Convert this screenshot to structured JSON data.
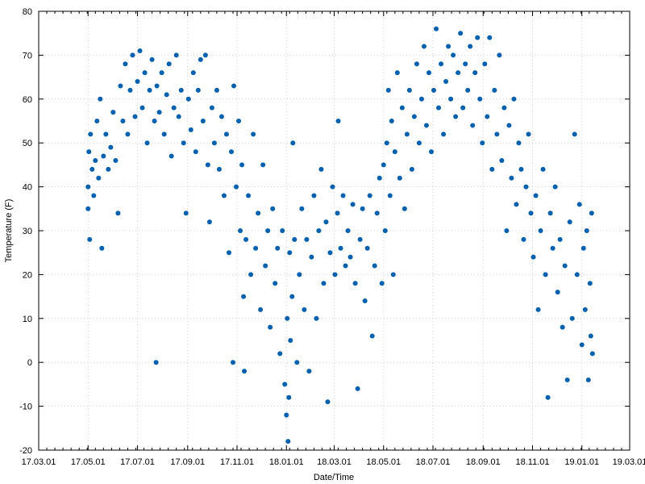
{
  "chart_data": {
    "type": "scatter",
    "title": "",
    "xlabel": "Date/Time",
    "ylabel": "Temperature (F)",
    "x_axis_type": "date",
    "xlim": [
      "2017-03-01",
      "2019-03-01"
    ],
    "ylim": [
      -20,
      80
    ],
    "grid": true,
    "legend": "none",
    "marker_color": "#0060ad",
    "x_ticks": [
      {
        "date": "2017-03-01",
        "label": "17.03.01"
      },
      {
        "date": "2017-05-01",
        "label": "17.05.01"
      },
      {
        "date": "2017-07-01",
        "label": "17.07.01"
      },
      {
        "date": "2017-09-01",
        "label": "17.09.01"
      },
      {
        "date": "2017-11-01",
        "label": "17.11.01"
      },
      {
        "date": "2018-01-01",
        "label": "18.01.01"
      },
      {
        "date": "2018-03-01",
        "label": "18.03.01"
      },
      {
        "date": "2018-05-01",
        "label": "18.05.01"
      },
      {
        "date": "2018-07-01",
        "label": "18.07.01"
      },
      {
        "date": "2018-09-01",
        "label": "18.09.01"
      },
      {
        "date": "2018-11-01",
        "label": "18.11.01"
      },
      {
        "date": "2019-01-01",
        "label": "19.01.01"
      },
      {
        "date": "2019-03-01",
        "label": "19.03.01"
      }
    ],
    "y_ticks": [
      -20,
      -10,
      0,
      10,
      20,
      30,
      40,
      50,
      60,
      70,
      80
    ],
    "series": [
      {
        "points": [
          {
            "x": "2017-05-01",
            "y": 40
          },
          {
            "x": "2017-05-01",
            "y": 35
          },
          {
            "x": "2017-05-02",
            "y": 48
          },
          {
            "x": "2017-05-03",
            "y": 28
          },
          {
            "x": "2017-05-04",
            "y": 52
          },
          {
            "x": "2017-05-06",
            "y": 44
          },
          {
            "x": "2017-05-08",
            "y": 38
          },
          {
            "x": "2017-05-10",
            "y": 46
          },
          {
            "x": "2017-05-12",
            "y": 55
          },
          {
            "x": "2017-05-14",
            "y": 42
          },
          {
            "x": "2017-05-16",
            "y": 60
          },
          {
            "x": "2017-05-18",
            "y": 26
          },
          {
            "x": "2017-05-20",
            "y": 47
          },
          {
            "x": "2017-05-23",
            "y": 52
          },
          {
            "x": "2017-05-26",
            "y": 44
          },
          {
            "x": "2017-05-29",
            "y": 49
          },
          {
            "x": "2017-06-01",
            "y": 57
          },
          {
            "x": "2017-06-04",
            "y": 46
          },
          {
            "x": "2017-06-07",
            "y": 34
          },
          {
            "x": "2017-06-10",
            "y": 63
          },
          {
            "x": "2017-06-13",
            "y": 55
          },
          {
            "x": "2017-06-16",
            "y": 68
          },
          {
            "x": "2017-06-19",
            "y": 52
          },
          {
            "x": "2017-06-22",
            "y": 62
          },
          {
            "x": "2017-06-25",
            "y": 70
          },
          {
            "x": "2017-06-28",
            "y": 56
          },
          {
            "x": "2017-07-01",
            "y": 64
          },
          {
            "x": "2017-07-04",
            "y": 71
          },
          {
            "x": "2017-07-07",
            "y": 58
          },
          {
            "x": "2017-07-10",
            "y": 66
          },
          {
            "x": "2017-07-13",
            "y": 50
          },
          {
            "x": "2017-07-16",
            "y": 62
          },
          {
            "x": "2017-07-19",
            "y": 69
          },
          {
            "x": "2017-07-22",
            "y": 55
          },
          {
            "x": "2017-07-24",
            "y": 0
          },
          {
            "x": "2017-07-25",
            "y": 63
          },
          {
            "x": "2017-07-28",
            "y": 57
          },
          {
            "x": "2017-07-31",
            "y": 66
          },
          {
            "x": "2017-08-03",
            "y": 52
          },
          {
            "x": "2017-08-06",
            "y": 61
          },
          {
            "x": "2017-08-09",
            "y": 68
          },
          {
            "x": "2017-08-12",
            "y": 47
          },
          {
            "x": "2017-08-15",
            "y": 58
          },
          {
            "x": "2017-08-18",
            "y": 70
          },
          {
            "x": "2017-08-21",
            "y": 56
          },
          {
            "x": "2017-08-24",
            "y": 62
          },
          {
            "x": "2017-08-27",
            "y": 50
          },
          {
            "x": "2017-08-30",
            "y": 34
          },
          {
            "x": "2017-09-02",
            "y": 60
          },
          {
            "x": "2017-09-05",
            "y": 53
          },
          {
            "x": "2017-09-08",
            "y": 66
          },
          {
            "x": "2017-09-11",
            "y": 48
          },
          {
            "x": "2017-09-14",
            "y": 62
          },
          {
            "x": "2017-09-17",
            "y": 69
          },
          {
            "x": "2017-09-20",
            "y": 55
          },
          {
            "x": "2017-09-23",
            "y": 70
          },
          {
            "x": "2017-09-26",
            "y": 45
          },
          {
            "x": "2017-09-28",
            "y": 32
          },
          {
            "x": "2017-10-01",
            "y": 58
          },
          {
            "x": "2017-10-04",
            "y": 50
          },
          {
            "x": "2017-10-07",
            "y": 62
          },
          {
            "x": "2017-10-10",
            "y": 44
          },
          {
            "x": "2017-10-13",
            "y": 56
          },
          {
            "x": "2017-10-16",
            "y": 38
          },
          {
            "x": "2017-10-19",
            "y": 52
          },
          {
            "x": "2017-10-22",
            "y": 25
          },
          {
            "x": "2017-10-25",
            "y": 48
          },
          {
            "x": "2017-10-27",
            "y": 0
          },
          {
            "x": "2017-10-28",
            "y": 63
          },
          {
            "x": "2017-10-31",
            "y": 40
          },
          {
            "x": "2017-11-03",
            "y": 55
          },
          {
            "x": "2017-11-05",
            "y": 30
          },
          {
            "x": "2017-11-07",
            "y": 45
          },
          {
            "x": "2017-11-09",
            "y": 15
          },
          {
            "x": "2017-11-10",
            "y": -2
          },
          {
            "x": "2017-11-12",
            "y": 28
          },
          {
            "x": "2017-11-15",
            "y": 38
          },
          {
            "x": "2017-11-18",
            "y": 20
          },
          {
            "x": "2017-11-21",
            "y": 52
          },
          {
            "x": "2017-11-24",
            "y": 26
          },
          {
            "x": "2017-11-27",
            "y": 34
          },
          {
            "x": "2017-11-30",
            "y": 12
          },
          {
            "x": "2017-12-03",
            "y": 45
          },
          {
            "x": "2017-12-06",
            "y": 22
          },
          {
            "x": "2017-12-09",
            "y": 30
          },
          {
            "x": "2017-12-12",
            "y": 8
          },
          {
            "x": "2017-12-15",
            "y": 35
          },
          {
            "x": "2017-12-18",
            "y": 18
          },
          {
            "x": "2017-12-21",
            "y": 26
          },
          {
            "x": "2017-12-24",
            "y": 2
          },
          {
            "x": "2017-12-27",
            "y": 30
          },
          {
            "x": "2017-12-30",
            "y": -5
          },
          {
            "x": "2018-01-01",
            "y": -12
          },
          {
            "x": "2018-01-02",
            "y": 10
          },
          {
            "x": "2018-01-03",
            "y": -18
          },
          {
            "x": "2018-01-04",
            "y": -8
          },
          {
            "x": "2018-01-05",
            "y": 25
          },
          {
            "x": "2018-01-06",
            "y": 5
          },
          {
            "x": "2018-01-08",
            "y": 15
          },
          {
            "x": "2018-01-09",
            "y": 50
          },
          {
            "x": "2018-01-11",
            "y": 28
          },
          {
            "x": "2018-01-14",
            "y": 0
          },
          {
            "x": "2018-01-17",
            "y": 20
          },
          {
            "x": "2018-01-20",
            "y": 35
          },
          {
            "x": "2018-01-23",
            "y": 12
          },
          {
            "x": "2018-01-26",
            "y": 28
          },
          {
            "x": "2018-01-29",
            "y": -2
          },
          {
            "x": "2018-02-01",
            "y": 24
          },
          {
            "x": "2018-02-04",
            "y": 38
          },
          {
            "x": "2018-02-07",
            "y": 10
          },
          {
            "x": "2018-02-10",
            "y": 30
          },
          {
            "x": "2018-02-13",
            "y": 44
          },
          {
            "x": "2018-02-16",
            "y": 18
          },
          {
            "x": "2018-02-19",
            "y": 32
          },
          {
            "x": "2018-02-21",
            "y": -9
          },
          {
            "x": "2018-02-24",
            "y": 25
          },
          {
            "x": "2018-02-27",
            "y": 40
          },
          {
            "x": "2018-03-02",
            "y": 20
          },
          {
            "x": "2018-03-05",
            "y": 34
          },
          {
            "x": "2018-03-06",
            "y": 55
          },
          {
            "x": "2018-03-09",
            "y": 26
          },
          {
            "x": "2018-03-12",
            "y": 38
          },
          {
            "x": "2018-03-15",
            "y": 22
          },
          {
            "x": "2018-03-18",
            "y": 30
          },
          {
            "x": "2018-03-21",
            "y": 24
          },
          {
            "x": "2018-03-24",
            "y": 36
          },
          {
            "x": "2018-03-27",
            "y": 18
          },
          {
            "x": "2018-03-30",
            "y": -6
          },
          {
            "x": "2018-04-02",
            "y": 28
          },
          {
            "x": "2018-04-05",
            "y": 35
          },
          {
            "x": "2018-04-08",
            "y": 14
          },
          {
            "x": "2018-04-11",
            "y": 26
          },
          {
            "x": "2018-04-14",
            "y": 38
          },
          {
            "x": "2018-04-17",
            "y": 6
          },
          {
            "x": "2018-04-20",
            "y": 22
          },
          {
            "x": "2018-04-23",
            "y": 34
          },
          {
            "x": "2018-04-26",
            "y": 42
          },
          {
            "x": "2018-04-29",
            "y": 18
          },
          {
            "x": "2018-05-01",
            "y": 45
          },
          {
            "x": "2018-05-03",
            "y": 30
          },
          {
            "x": "2018-05-05",
            "y": 50
          },
          {
            "x": "2018-05-07",
            "y": 62
          },
          {
            "x": "2018-05-09",
            "y": 38
          },
          {
            "x": "2018-05-11",
            "y": 55
          },
          {
            "x": "2018-05-13",
            "y": 20
          },
          {
            "x": "2018-05-15",
            "y": 48
          },
          {
            "x": "2018-05-18",
            "y": 66
          },
          {
            "x": "2018-05-21",
            "y": 42
          },
          {
            "x": "2018-05-24",
            "y": 58
          },
          {
            "x": "2018-05-27",
            "y": 35
          },
          {
            "x": "2018-05-30",
            "y": 52
          },
          {
            "x": "2018-06-02",
            "y": 62
          },
          {
            "x": "2018-06-05",
            "y": 44
          },
          {
            "x": "2018-06-08",
            "y": 56
          },
          {
            "x": "2018-06-11",
            "y": 68
          },
          {
            "x": "2018-06-14",
            "y": 50
          },
          {
            "x": "2018-06-17",
            "y": 60
          },
          {
            "x": "2018-06-20",
            "y": 72
          },
          {
            "x": "2018-06-23",
            "y": 54
          },
          {
            "x": "2018-06-26",
            "y": 66
          },
          {
            "x": "2018-06-29",
            "y": 48
          },
          {
            "x": "2018-07-02",
            "y": 62
          },
          {
            "x": "2018-07-05",
            "y": 76
          },
          {
            "x": "2018-07-08",
            "y": 58
          },
          {
            "x": "2018-07-11",
            "y": 68
          },
          {
            "x": "2018-07-14",
            "y": 52
          },
          {
            "x": "2018-07-17",
            "y": 64
          },
          {
            "x": "2018-07-20",
            "y": 72
          },
          {
            "x": "2018-07-23",
            "y": 60
          },
          {
            "x": "2018-07-26",
            "y": 70
          },
          {
            "x": "2018-07-29",
            "y": 56
          },
          {
            "x": "2018-08-01",
            "y": 66
          },
          {
            "x": "2018-08-04",
            "y": 75
          },
          {
            "x": "2018-08-07",
            "y": 58
          },
          {
            "x": "2018-08-10",
            "y": 68
          },
          {
            "x": "2018-08-13",
            "y": 62
          },
          {
            "x": "2018-08-16",
            "y": 72
          },
          {
            "x": "2018-08-19",
            "y": 54
          },
          {
            "x": "2018-08-22",
            "y": 66
          },
          {
            "x": "2018-08-25",
            "y": 74
          },
          {
            "x": "2018-08-28",
            "y": 60
          },
          {
            "x": "2018-08-31",
            "y": 50
          },
          {
            "x": "2018-09-03",
            "y": 68
          },
          {
            "x": "2018-09-06",
            "y": 56
          },
          {
            "x": "2018-09-09",
            "y": 74
          },
          {
            "x": "2018-09-12",
            "y": 44
          },
          {
            "x": "2018-09-15",
            "y": 62
          },
          {
            "x": "2018-09-18",
            "y": 52
          },
          {
            "x": "2018-09-21",
            "y": 70
          },
          {
            "x": "2018-09-24",
            "y": 46
          },
          {
            "x": "2018-09-27",
            "y": 58
          },
          {
            "x": "2018-09-30",
            "y": 30
          },
          {
            "x": "2018-10-03",
            "y": 54
          },
          {
            "x": "2018-10-06",
            "y": 42
          },
          {
            "x": "2018-10-09",
            "y": 60
          },
          {
            "x": "2018-10-12",
            "y": 36
          },
          {
            "x": "2018-10-15",
            "y": 50
          },
          {
            "x": "2018-10-18",
            "y": 44
          },
          {
            "x": "2018-10-21",
            "y": 28
          },
          {
            "x": "2018-10-24",
            "y": 40
          },
          {
            "x": "2018-10-27",
            "y": 52
          },
          {
            "x": "2018-10-30",
            "y": 34
          },
          {
            "x": "2018-11-02",
            "y": 24
          },
          {
            "x": "2018-11-05",
            "y": 38
          },
          {
            "x": "2018-11-08",
            "y": 12
          },
          {
            "x": "2018-11-11",
            "y": 30
          },
          {
            "x": "2018-11-14",
            "y": 44
          },
          {
            "x": "2018-11-17",
            "y": 20
          },
          {
            "x": "2018-11-20",
            "y": -8
          },
          {
            "x": "2018-11-23",
            "y": 34
          },
          {
            "x": "2018-11-26",
            "y": 26
          },
          {
            "x": "2018-11-29",
            "y": 40
          },
          {
            "x": "2018-12-02",
            "y": 16
          },
          {
            "x": "2018-12-05",
            "y": 28
          },
          {
            "x": "2018-12-08",
            "y": 8
          },
          {
            "x": "2018-12-11",
            "y": 22
          },
          {
            "x": "2018-12-14",
            "y": -4
          },
          {
            "x": "2018-12-17",
            "y": 32
          },
          {
            "x": "2018-12-20",
            "y": 10
          },
          {
            "x": "2018-12-23",
            "y": 52
          },
          {
            "x": "2018-12-26",
            "y": 20
          },
          {
            "x": "2018-12-29",
            "y": 36
          },
          {
            "x": "2019-01-01",
            "y": 4
          },
          {
            "x": "2019-01-03",
            "y": 26
          },
          {
            "x": "2019-01-05",
            "y": 12
          },
          {
            "x": "2019-01-07",
            "y": 30
          },
          {
            "x": "2019-01-09",
            "y": -4
          },
          {
            "x": "2019-01-11",
            "y": 18
          },
          {
            "x": "2019-01-12",
            "y": 6
          },
          {
            "x": "2019-01-13",
            "y": 34
          },
          {
            "x": "2019-01-14",
            "y": 2
          }
        ]
      }
    ]
  }
}
